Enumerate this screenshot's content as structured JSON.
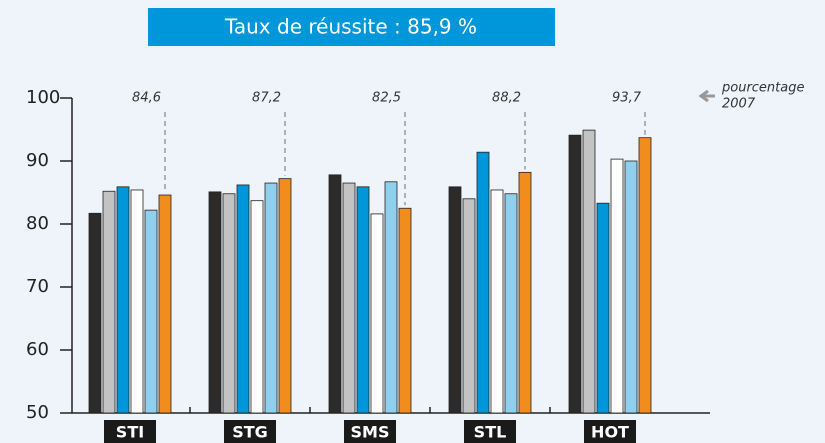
{
  "chart_data": {
    "type": "bar",
    "title": "Taux de réussite : 85,9 %",
    "annotation": [
      "pourcentage",
      "2007"
    ],
    "categories": [
      "STI",
      "STG",
      "SMS",
      "STL",
      "HOT"
    ],
    "series": [
      {
        "color": "#2b2b2b",
        "values": [
          81.7,
          85.1,
          87.8,
          85.9,
          94.1
        ]
      },
      {
        "color": "#c3c3c3",
        "values": [
          85.2,
          84.8,
          86.5,
          84.0,
          94.9
        ]
      },
      {
        "color": "#0096da",
        "values": [
          85.9,
          86.2,
          85.9,
          91.4,
          83.3
        ]
      },
      {
        "color": "#ffffff",
        "values": [
          85.4,
          83.7,
          81.6,
          85.4,
          90.3
        ]
      },
      {
        "color": "#8fd0ef",
        "values": [
          82.2,
          86.5,
          86.7,
          84.8,
          90.0
        ]
      },
      {
        "color": "#f28c1c",
        "values": [
          84.6,
          87.2,
          82.5,
          88.2,
          93.7
        ],
        "value_labels": [
          "84,6",
          "87,2",
          "82,5",
          "88,2",
          "93,7"
        ]
      }
    ],
    "ylim": [
      50,
      100
    ],
    "yticks": [
      50,
      60,
      70,
      80,
      90,
      100
    ]
  }
}
